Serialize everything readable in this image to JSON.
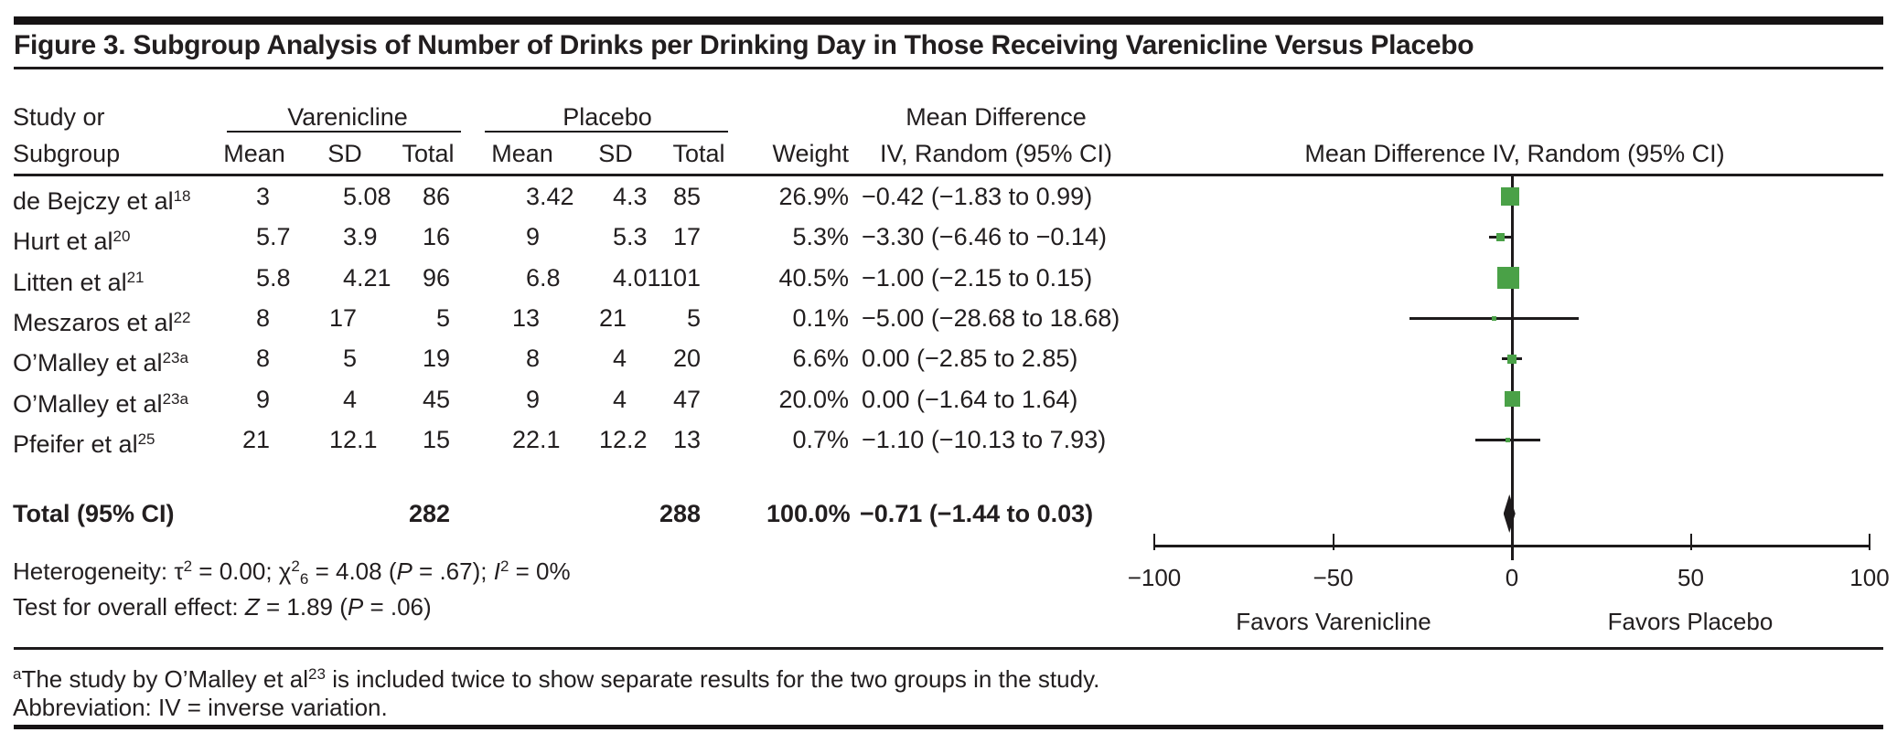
{
  "figure": {
    "title": "Figure 3. Subgroup Analysis of Number of Drinks per Drinking Day in Those Receiving Varenicline Versus Placebo"
  },
  "table": {
    "header": {
      "study_line1": "Study or",
      "study_line2": "Subgroup",
      "group_varenicline": "Varenicline",
      "group_placebo": "Placebo",
      "mean": "Mean",
      "sd": "SD",
      "total": "Total",
      "weight": "Weight",
      "md_line1": "Mean Difference",
      "md_line2": "IV, Random (95% CI)",
      "plot_header": "Mean Difference IV, Random (95% CI)"
    },
    "rows": [
      {
        "study": "de Bejczy et al",
        "ref": "18",
        "v_mean": "3",
        "v_sd": "5.08",
        "v_total": "86",
        "p_mean": "3.42",
        "p_sd": "4.3",
        "p_total": "85",
        "weight": "26.9%",
        "md": "−0.42 (−1.83 to 0.99)"
      },
      {
        "study": "Hurt et al",
        "ref": "20",
        "v_mean": "5.7",
        "v_sd": "3.9",
        "v_total": "16",
        "p_mean": "9",
        "p_sd": "5.3",
        "p_total": "17",
        "weight": "5.3%",
        "md": "−3.30 (−6.46 to −0.14)"
      },
      {
        "study": "Litten et al",
        "ref": "21",
        "v_mean": "5.8",
        "v_sd": "4.21",
        "v_total": "96",
        "p_mean": "6.8",
        "p_sd": "4.01",
        "p_total": "101",
        "weight": "40.5%",
        "md": "−1.00 (−2.15 to 0.15)"
      },
      {
        "study": "Meszaros et al",
        "ref": "22",
        "v_mean": "8",
        "v_sd": "17",
        "v_total": "5",
        "p_mean": "13",
        "p_sd": "21",
        "p_total": "5",
        "weight": "0.1%",
        "md": "−5.00 (−28.68 to 18.68)"
      },
      {
        "study": "O’Malley et al",
        "ref": "23a",
        "v_mean": "8",
        "v_sd": "5",
        "v_total": "19",
        "p_mean": "8",
        "p_sd": "4",
        "p_total": "20",
        "weight": "6.6%",
        "md": "0.00 (−2.85 to 2.85)"
      },
      {
        "study": "O’Malley et al",
        "ref": "23a",
        "v_mean": "9",
        "v_sd": "4",
        "v_total": "45",
        "p_mean": "9",
        "p_sd": "4",
        "p_total": "47",
        "weight": "20.0%",
        "md": "0.00 (−1.64 to 1.64)"
      },
      {
        "study": "Pfeifer et al",
        "ref": "25",
        "v_mean": "21",
        "v_sd": "12.1",
        "v_total": "15",
        "p_mean": "22.1",
        "p_sd": "12.2",
        "p_total": "13",
        "weight": "0.7%",
        "md": "−1.10 (−10.13 to 7.93)"
      }
    ],
    "total_row": {
      "label": "Total (95% CI)",
      "v_total": "282",
      "p_total": "288",
      "weight": "100.0%",
      "md": "−0.71 (−1.44 to 0.03)"
    }
  },
  "stats": {
    "het_prefix": "Heterogeneity: τ",
    "het_sup1": "2",
    "het_mid1": " = 0.00; χ",
    "het_sup2": "2",
    "het_sub2": "6",
    "het_mid2": " = 4.08 (",
    "het_p": "P",
    "het_mid3": " = .67); ",
    "het_i": "I",
    "het_sup3": "2",
    "het_end": " = 0%",
    "test_prefix": "Test for overall effect: ",
    "test_z": "Z",
    "test_mid": " = 1.89 (",
    "test_p": "P",
    "test_end": " = .06)"
  },
  "footnotes": {
    "fn1_marker": "a",
    "fn1_text1": "The study by O’Malley et al",
    "fn1_ref": "23",
    "fn1_text2": " is included twice to show separate results for the two groups in the study.",
    "fn2": "Abbreviation: IV = inverse variation."
  },
  "chart_data": {
    "type": "forest",
    "title": "Mean Difference IV, Random (95% CI)",
    "xlabel_left": "Favors Varenicline",
    "xlabel_right": "Favors Placebo",
    "xlim": [
      -100,
      100
    ],
    "axis_ticks": [
      -100,
      -50,
      0,
      50,
      100
    ],
    "axis_tick_labels": [
      "−100",
      "−50",
      "0",
      "50",
      "100"
    ],
    "marker_color": "#4aa147",
    "line_color": "#1d1a1b",
    "studies": [
      {
        "name": "de Bejczy et al 18",
        "md": -0.42,
        "ci_low": -1.83,
        "ci_high": 0.99,
        "weight_pct": 26.9
      },
      {
        "name": "Hurt et al 20",
        "md": -3.3,
        "ci_low": -6.46,
        "ci_high": -0.14,
        "weight_pct": 5.3
      },
      {
        "name": "Litten et al 21",
        "md": -1.0,
        "ci_low": -2.15,
        "ci_high": 0.15,
        "weight_pct": 40.5
      },
      {
        "name": "Meszaros et al 22",
        "md": -5.0,
        "ci_low": -28.68,
        "ci_high": 18.68,
        "weight_pct": 0.1
      },
      {
        "name": "O’Malley et al 23a",
        "md": 0.0,
        "ci_low": -2.85,
        "ci_high": 2.85,
        "weight_pct": 6.6
      },
      {
        "name": "O’Malley et al 23a",
        "md": 0.0,
        "ci_low": -1.64,
        "ci_high": 1.64,
        "weight_pct": 20.0
      },
      {
        "name": "Pfeifer et al 25",
        "md": -1.1,
        "ci_low": -10.13,
        "ci_high": 7.93,
        "weight_pct": 0.7
      }
    ],
    "total": {
      "md": -0.71,
      "ci_low": -1.44,
      "ci_high": 0.03,
      "weight_pct": 100.0
    }
  }
}
